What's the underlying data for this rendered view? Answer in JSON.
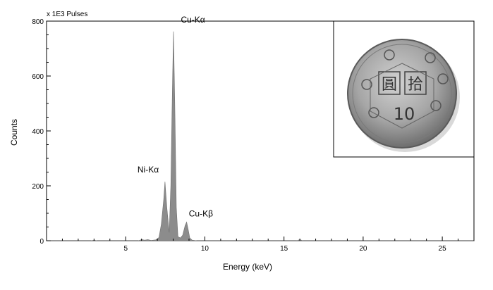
{
  "chart_data": {
    "type": "area",
    "xlabel": "Energy (keV)",
    "ylabel": "Counts",
    "y_scale_note": "x 1E3 Pulses",
    "xlim": [
      0,
      27
    ],
    "ylim": [
      0,
      800
    ],
    "xticks": [
      5,
      10,
      15,
      20,
      25
    ],
    "yticks": [
      0,
      200,
      400,
      600,
      800
    ],
    "series": [
      {
        "x": [
          0.0,
          2.8,
          3.0,
          3.2,
          5.8,
          6.0,
          6.2,
          6.4,
          6.6,
          6.9,
          7.1,
          7.25,
          7.4,
          7.48,
          7.6,
          7.75,
          7.85,
          7.95,
          8.02,
          8.1,
          8.2,
          8.3,
          8.45,
          8.6,
          8.75,
          8.85,
          8.95,
          9.05,
          9.2,
          9.5,
          15.8,
          16.0,
          16.2,
          27.0
        ],
        "y": [
          0,
          0,
          2,
          0,
          0,
          4,
          2,
          4,
          1,
          3,
          12,
          60,
          150,
          215,
          120,
          30,
          200,
          550,
          762,
          500,
          120,
          15,
          10,
          20,
          55,
          68,
          40,
          10,
          2,
          0,
          0,
          4,
          0,
          0
        ]
      }
    ],
    "annotations": [
      {
        "text": "Cu-Kα",
        "x": 8.04,
        "y": 762
      },
      {
        "text": "Ni-Kα",
        "x": 7.48,
        "y": 215
      },
      {
        "text": "Cu-Kβ",
        "x": 8.9,
        "y": 68
      }
    ],
    "fill_color": "#8c8c8c",
    "grid": false
  },
  "inset": {
    "coin_text": [
      "拾",
      "圓",
      "10"
    ]
  }
}
